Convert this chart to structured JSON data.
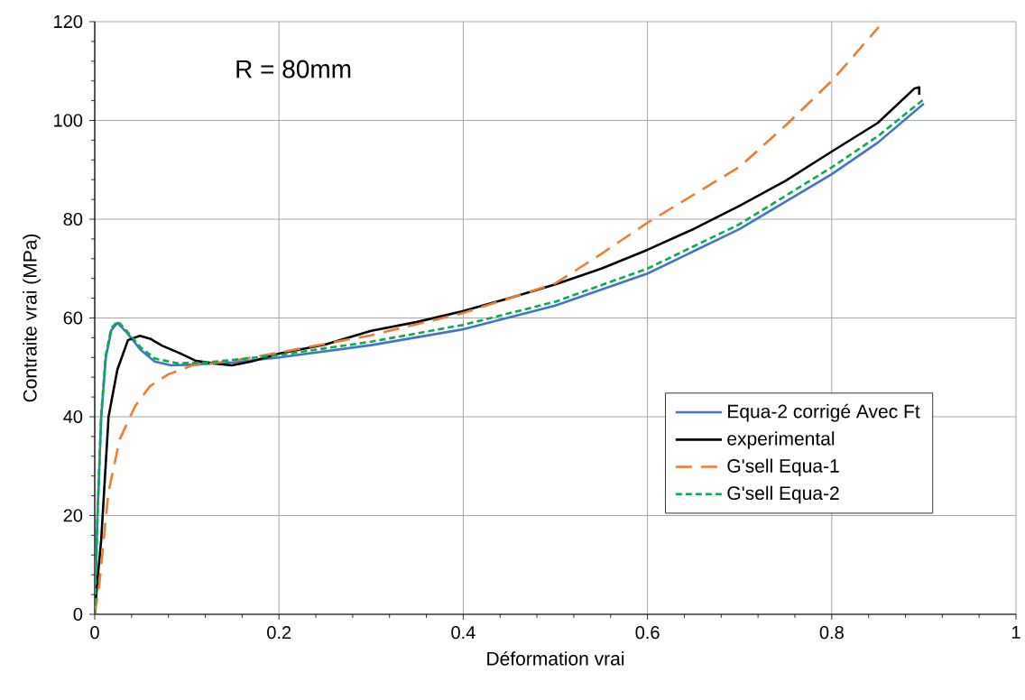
{
  "chart_data": {
    "type": "line",
    "xlabel": "Déformation vrai",
    "ylabel": "Contraite vrai (MPa)",
    "annotations": [
      "R = 80mm"
    ],
    "xlim": [
      0,
      1
    ],
    "ylim": [
      0,
      120
    ],
    "xticks": [
      0,
      0.2,
      0.4,
      0.6,
      0.8,
      1
    ],
    "yticks": [
      0,
      20,
      40,
      60,
      80,
      100,
      120
    ],
    "grid": true,
    "legend": "right",
    "marker": "none",
    "series": [
      {
        "name": "Equa-2 corrigé Avec Ft",
        "color": "#4472c4",
        "line_style": "solid",
        "x": [
          0,
          0.003,
          0.007,
          0.012,
          0.018,
          0.0245,
          0.035,
          0.05,
          0.065,
          0.083,
          0.1,
          0.15,
          0.2,
          0.3,
          0.4,
          0.5,
          0.6,
          0.7,
          0.8,
          0.85,
          0.9
        ],
        "values": [
          0,
          20,
          39.8,
          52,
          57.5,
          59,
          57,
          53.5,
          51.2,
          50.4,
          50.5,
          51,
          52,
          54.5,
          57.7,
          62.5,
          69,
          78,
          89.1,
          95.5,
          103.4
        ]
      },
      {
        "name": "experimental",
        "color": "#000000",
        "line_style": "solid",
        "x": [
          0,
          0.003,
          0.007,
          0.015,
          0.0245,
          0.036,
          0.049,
          0.06,
          0.073,
          0.093,
          0.11,
          0.13,
          0.149,
          0.17,
          0.2,
          0.25,
          0.3,
          0.35,
          0.4,
          0.45,
          0.5,
          0.55,
          0.6,
          0.65,
          0.7,
          0.75,
          0.8,
          0.85,
          0.89,
          0.895,
          0.895
        ],
        "values": [
          0,
          7,
          15,
          40,
          49.5,
          55.5,
          56.4,
          55.8,
          54.4,
          52.8,
          51.3,
          50.8,
          50.4,
          51.2,
          52.8,
          54.6,
          57.4,
          59.2,
          61.4,
          64,
          66.8,
          70,
          73.8,
          78,
          82.7,
          87.8,
          93.7,
          99.5,
          106.5,
          106.7,
          105.2
        ]
      },
      {
        "name": "G'sell Equa-1",
        "color": "#ed7d31",
        "line_style": "dashed",
        "x": [
          0,
          0.005,
          0.0147,
          0.027,
          0.044,
          0.06,
          0.08,
          0.106,
          0.15,
          0.2,
          0.3,
          0.4,
          0.5,
          0.55,
          0.6,
          0.7,
          0.75,
          0.8,
          0.851
        ],
        "values": [
          0,
          6,
          24.5,
          35.4,
          42.2,
          46.2,
          48.6,
          50.4,
          51.3,
          53,
          56.5,
          61,
          67,
          73,
          79.3,
          90.6,
          99,
          108,
          118.9
        ]
      },
      {
        "name": "G'sell Equa-2",
        "color": "#00b050",
        "line_style": "dotted",
        "x": [
          0,
          0.003,
          0.007,
          0.012,
          0.018,
          0.025,
          0.035,
          0.05,
          0.065,
          0.09,
          0.12,
          0.15,
          0.2,
          0.3,
          0.4,
          0.5,
          0.6,
          0.7,
          0.8,
          0.85,
          0.9
        ],
        "values": [
          0,
          20,
          40.5,
          52.5,
          58,
          59.3,
          57.3,
          54,
          51.8,
          50.8,
          51,
          51.5,
          52.5,
          55.2,
          58.6,
          63.3,
          70,
          79,
          90.5,
          96.8,
          104.3
        ]
      }
    ]
  }
}
